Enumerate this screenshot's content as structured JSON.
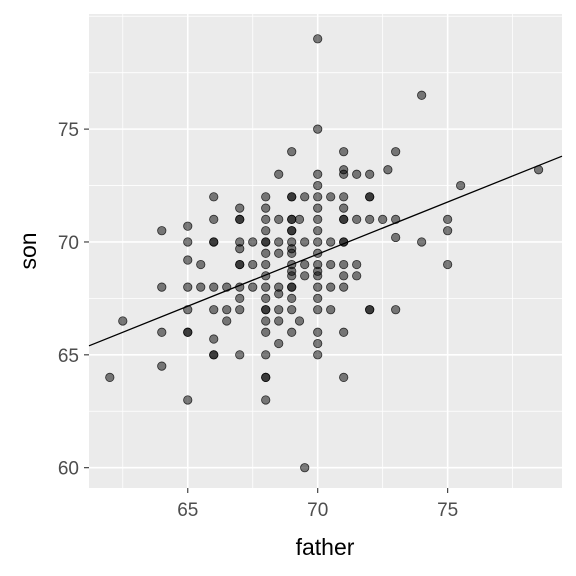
{
  "chart_data": {
    "type": "scatter",
    "xlabel": "father",
    "ylabel": "son",
    "xlim": [
      61.2,
      79.4
    ],
    "ylim": [
      59.1,
      80.1
    ],
    "x_ticks": [
      65,
      70,
      75
    ],
    "y_ticks": [
      60,
      65,
      70,
      75
    ],
    "grid": true,
    "colors": {
      "panel_background": "#ebebeb",
      "grid_major": "#ffffff",
      "point_fill": "#000000",
      "point_alpha": 0.5,
      "line": "#000000"
    },
    "trend_line": {
      "x": [
        61.2,
        79.4
      ],
      "y": [
        65.4,
        73.8
      ]
    },
    "points": [
      {
        "x": 62,
        "y": 64
      },
      {
        "x": 62.5,
        "y": 66.5
      },
      {
        "x": 64,
        "y": 70.5
      },
      {
        "x": 64,
        "y": 68
      },
      {
        "x": 64,
        "y": 66
      },
      {
        "x": 64,
        "y": 64.5
      },
      {
        "x": 65,
        "y": 70.7
      },
      {
        "x": 65,
        "y": 70
      },
      {
        "x": 65,
        "y": 69.2
      },
      {
        "x": 65,
        "y": 68
      },
      {
        "x": 65,
        "y": 67
      },
      {
        "x": 65,
        "y": 66
      },
      {
        "x": 65,
        "y": 66
      },
      {
        "x": 65,
        "y": 63
      },
      {
        "x": 65.5,
        "y": 69
      },
      {
        "x": 65.5,
        "y": 68
      },
      {
        "x": 66,
        "y": 72
      },
      {
        "x": 66,
        "y": 71
      },
      {
        "x": 66,
        "y": 70
      },
      {
        "x": 66,
        "y": 70
      },
      {
        "x": 66,
        "y": 68
      },
      {
        "x": 66,
        "y": 67
      },
      {
        "x": 66,
        "y": 65.7
      },
      {
        "x": 66,
        "y": 65
      },
      {
        "x": 66,
        "y": 65
      },
      {
        "x": 66.5,
        "y": 68
      },
      {
        "x": 66.5,
        "y": 67
      },
      {
        "x": 66.5,
        "y": 66.5
      },
      {
        "x": 67,
        "y": 71.5
      },
      {
        "x": 67,
        "y": 71
      },
      {
        "x": 67,
        "y": 71
      },
      {
        "x": 67,
        "y": 70
      },
      {
        "x": 67,
        "y": 69.7
      },
      {
        "x": 67,
        "y": 69
      },
      {
        "x": 67,
        "y": 69
      },
      {
        "x": 67,
        "y": 68
      },
      {
        "x": 67,
        "y": 67.5
      },
      {
        "x": 67,
        "y": 67
      },
      {
        "x": 67,
        "y": 65
      },
      {
        "x": 67.5,
        "y": 70
      },
      {
        "x": 67.5,
        "y": 69
      },
      {
        "x": 67.5,
        "y": 68
      },
      {
        "x": 68,
        "y": 72
      },
      {
        "x": 68,
        "y": 71.5
      },
      {
        "x": 68,
        "y": 71
      },
      {
        "x": 68,
        "y": 70.5
      },
      {
        "x": 68,
        "y": 70
      },
      {
        "x": 68,
        "y": 70
      },
      {
        "x": 68,
        "y": 69.5
      },
      {
        "x": 68,
        "y": 69
      },
      {
        "x": 68,
        "y": 68.5
      },
      {
        "x": 68,
        "y": 68
      },
      {
        "x": 68,
        "y": 67.5
      },
      {
        "x": 68,
        "y": 67
      },
      {
        "x": 68,
        "y": 67
      },
      {
        "x": 68,
        "y": 66.5
      },
      {
        "x": 68,
        "y": 66
      },
      {
        "x": 68,
        "y": 65
      },
      {
        "x": 68,
        "y": 64
      },
      {
        "x": 68,
        "y": 64
      },
      {
        "x": 68,
        "y": 63
      },
      {
        "x": 68.5,
        "y": 73
      },
      {
        "x": 68.5,
        "y": 71
      },
      {
        "x": 68.5,
        "y": 70
      },
      {
        "x": 68.5,
        "y": 69.5
      },
      {
        "x": 68.5,
        "y": 68
      },
      {
        "x": 68.5,
        "y": 67.7
      },
      {
        "x": 68.5,
        "y": 67
      },
      {
        "x": 68.5,
        "y": 66.5
      },
      {
        "x": 68.5,
        "y": 65.5
      },
      {
        "x": 69,
        "y": 74
      },
      {
        "x": 69,
        "y": 72
      },
      {
        "x": 69,
        "y": 72
      },
      {
        "x": 69,
        "y": 71
      },
      {
        "x": 69,
        "y": 71
      },
      {
        "x": 69,
        "y": 70.5
      },
      {
        "x": 69,
        "y": 70.5
      },
      {
        "x": 69,
        "y": 70
      },
      {
        "x": 69,
        "y": 69.7
      },
      {
        "x": 69,
        "y": 69.5
      },
      {
        "x": 69,
        "y": 69
      },
      {
        "x": 69,
        "y": 68.7
      },
      {
        "x": 69,
        "y": 68.5
      },
      {
        "x": 69,
        "y": 68
      },
      {
        "x": 69,
        "y": 68
      },
      {
        "x": 69,
        "y": 67.5
      },
      {
        "x": 69,
        "y": 67
      },
      {
        "x": 69,
        "y": 66
      },
      {
        "x": 69.3,
        "y": 71
      },
      {
        "x": 69.3,
        "y": 66.5
      },
      {
        "x": 69.5,
        "y": 72
      },
      {
        "x": 69.5,
        "y": 70
      },
      {
        "x": 69.5,
        "y": 69
      },
      {
        "x": 69.5,
        "y": 68.5
      },
      {
        "x": 69.5,
        "y": 60
      },
      {
        "x": 70,
        "y": 79
      },
      {
        "x": 70,
        "y": 75
      },
      {
        "x": 70,
        "y": 73
      },
      {
        "x": 70,
        "y": 72.5
      },
      {
        "x": 70,
        "y": 72
      },
      {
        "x": 70,
        "y": 71.5
      },
      {
        "x": 70,
        "y": 71
      },
      {
        "x": 70,
        "y": 70.5
      },
      {
        "x": 70,
        "y": 70
      },
      {
        "x": 70,
        "y": 69.5
      },
      {
        "x": 70,
        "y": 69
      },
      {
        "x": 70,
        "y": 68.7
      },
      {
        "x": 70,
        "y": 68.5
      },
      {
        "x": 70,
        "y": 68
      },
      {
        "x": 70,
        "y": 67.5
      },
      {
        "x": 70,
        "y": 67
      },
      {
        "x": 70,
        "y": 66
      },
      {
        "x": 70,
        "y": 65.5
      },
      {
        "x": 70,
        "y": 65
      },
      {
        "x": 70.5,
        "y": 72
      },
      {
        "x": 70.5,
        "y": 70
      },
      {
        "x": 70.5,
        "y": 69
      },
      {
        "x": 70.5,
        "y": 68
      },
      {
        "x": 70.5,
        "y": 67
      },
      {
        "x": 71,
        "y": 74
      },
      {
        "x": 71,
        "y": 73.2
      },
      {
        "x": 71,
        "y": 73
      },
      {
        "x": 71,
        "y": 72
      },
      {
        "x": 71,
        "y": 71.5
      },
      {
        "x": 71,
        "y": 71
      },
      {
        "x": 71,
        "y": 71
      },
      {
        "x": 71,
        "y": 70
      },
      {
        "x": 71,
        "y": 70
      },
      {
        "x": 71,
        "y": 69
      },
      {
        "x": 71,
        "y": 68.5
      },
      {
        "x": 71,
        "y": 68
      },
      {
        "x": 71,
        "y": 66
      },
      {
        "x": 71,
        "y": 64
      },
      {
        "x": 71.5,
        "y": 73
      },
      {
        "x": 71.5,
        "y": 71
      },
      {
        "x": 71.5,
        "y": 69
      },
      {
        "x": 71.5,
        "y": 68.5
      },
      {
        "x": 72,
        "y": 73
      },
      {
        "x": 72,
        "y": 72
      },
      {
        "x": 72,
        "y": 72
      },
      {
        "x": 72,
        "y": 71
      },
      {
        "x": 72,
        "y": 67
      },
      {
        "x": 72,
        "y": 67
      },
      {
        "x": 72.5,
        "y": 71
      },
      {
        "x": 72.7,
        "y": 73.2
      },
      {
        "x": 73,
        "y": 74
      },
      {
        "x": 73,
        "y": 71
      },
      {
        "x": 73,
        "y": 70.2
      },
      {
        "x": 73,
        "y": 67
      },
      {
        "x": 74,
        "y": 76.5
      },
      {
        "x": 74,
        "y": 70
      },
      {
        "x": 75,
        "y": 71
      },
      {
        "x": 75,
        "y": 70.5
      },
      {
        "x": 75,
        "y": 69
      },
      {
        "x": 75.5,
        "y": 72.5
      },
      {
        "x": 78.5,
        "y": 73.2
      }
    ]
  }
}
